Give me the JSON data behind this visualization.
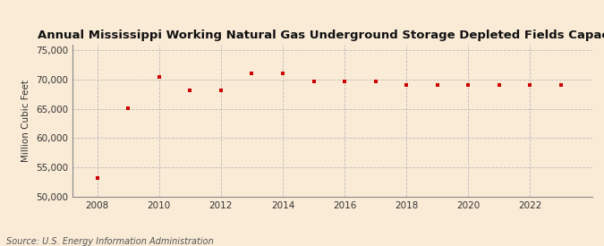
{
  "title": "Annual Mississippi Working Natural Gas Underground Storage Depleted Fields Capacity",
  "ylabel": "Million Cubic Feet",
  "source": "Source: U.S. Energy Information Administration",
  "background_color": "#faebd7",
  "plot_background_color": "#faebd7",
  "years": [
    2008,
    2009,
    2010,
    2011,
    2012,
    2013,
    2014,
    2015,
    2016,
    2017,
    2018,
    2019,
    2020,
    2021,
    2022,
    2023
  ],
  "values": [
    53200,
    65100,
    70400,
    68200,
    68200,
    71100,
    71000,
    69700,
    69700,
    69700,
    69000,
    69000,
    69000,
    69000,
    69000,
    69000
  ],
  "marker_color": "#cc0000",
  "marker": "s",
  "marker_size": 3.5,
  "ylim": [
    50000,
    76000
  ],
  "yticks": [
    50000,
    55000,
    60000,
    65000,
    70000,
    75000
  ],
  "xticks": [
    2008,
    2010,
    2012,
    2014,
    2016,
    2018,
    2020,
    2022
  ],
  "grid_color": "#bbbbbb",
  "grid_style": "--",
  "title_fontsize": 9.5,
  "axis_fontsize": 7.5,
  "source_fontsize": 7
}
